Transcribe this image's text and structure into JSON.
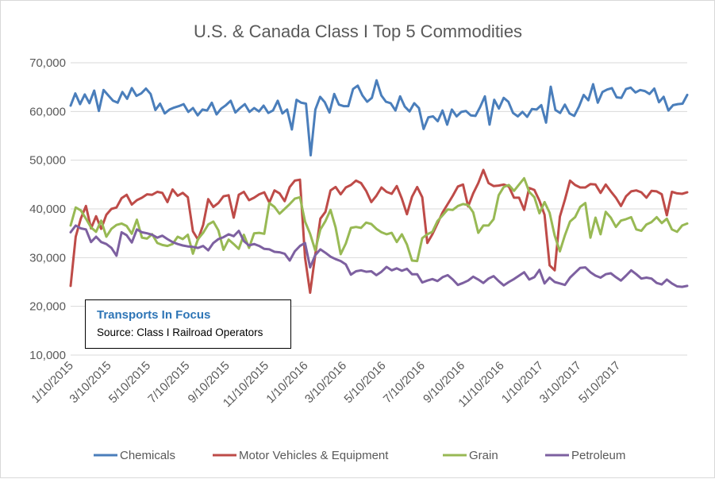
{
  "chart_data": {
    "type": "line",
    "title": "U.S. & Canada Class I Top 5 Commodities",
    "ylim": [
      10000,
      70000
    ],
    "y_ticks": [
      10000,
      20000,
      30000,
      40000,
      50000,
      60000,
      70000
    ],
    "y_tick_labels": [
      "10,000",
      "20,000",
      "30,000",
      "40,000",
      "50,000",
      "60,000",
      "70,000"
    ],
    "x_tick_labels": [
      "1/10/2015",
      "3/10/2015",
      "5/10/2015",
      "7/10/2015",
      "9/10/2015",
      "11/10/2015",
      "1/10/2016",
      "3/10/2016",
      "5/10/2016",
      "7/10/2016",
      "9/10/2016",
      "11/10/2016",
      "1/10/2017",
      "3/10/2017",
      "5/10/2017"
    ],
    "x_start": "1/10/2015",
    "x_end": "8/26/2017",
    "grid": true,
    "legend_position": "bottom",
    "series": [
      {
        "name": "Chemicals",
        "color": "#4A7EBB",
        "values": [
          61200,
          63700,
          61500,
          63500,
          61700,
          64300,
          60100,
          64400,
          63300,
          62200,
          61800,
          64000,
          62600,
          64800,
          63200,
          63700,
          64700,
          63600,
          60300,
          61600,
          59600,
          60400,
          60800,
          61100,
          61500,
          59900,
          60700,
          59200,
          60400,
          60200,
          61800,
          59400,
          60600,
          61300,
          62200,
          59800,
          60700,
          61500,
          59900,
          60700,
          60000,
          61200,
          59700,
          60200,
          62200,
          59600,
          60400,
          56300,
          62400,
          61800,
          61600,
          51000,
          60400,
          63000,
          61900,
          59800,
          63600,
          61400,
          61100,
          61100,
          64600,
          65300,
          63300,
          62000,
          62800,
          66400,
          63300,
          62000,
          61700,
          60200,
          63100,
          61000,
          60000,
          61700,
          60700,
          56400,
          58800,
          59000,
          58000,
          60200,
          57300,
          60400,
          59000,
          59900,
          60100,
          59200,
          59100,
          60900,
          63100,
          57300,
          62400,
          60600,
          62800,
          62000,
          59700,
          59000,
          59900,
          58900,
          60500,
          60400,
          61300,
          57700,
          65100,
          60300,
          59700,
          61400,
          59600,
          59100,
          61000,
          63400,
          62300,
          65600,
          61800,
          64000,
          64500,
          64800,
          62900,
          62800,
          64600,
          64900,
          63900,
          64400,
          64200,
          63600,
          64700,
          61900,
          63000,
          60200,
          61300,
          61500,
          61600,
          63400
        ]
      },
      {
        "name": "Motor Vehicles & Equipment",
        "color": "#BE4B48",
        "values": [
          24200,
          34300,
          38000,
          40600,
          36000,
          38500,
          35900,
          38800,
          40000,
          40300,
          42200,
          42900,
          40900,
          41800,
          42300,
          43000,
          42900,
          43500,
          43300,
          41400,
          44000,
          42700,
          43300,
          42400,
          35400,
          33700,
          36700,
          42000,
          40400,
          41200,
          42600,
          42800,
          38200,
          42900,
          43500,
          41800,
          42300,
          43000,
          43400,
          41300,
          43800,
          43200,
          41600,
          44500,
          45800,
          46000,
          30000,
          22800,
          30500,
          38000,
          39400,
          43800,
          44500,
          43000,
          44400,
          44900,
          45800,
          45300,
          43700,
          41400,
          42700,
          44400,
          43500,
          43100,
          44700,
          42100,
          38900,
          42500,
          44500,
          42400,
          33000,
          34800,
          37000,
          39300,
          41000,
          42700,
          44600,
          45000,
          40500,
          43200,
          45300,
          48000,
          45300,
          44700,
          44800,
          45000,
          44600,
          42300,
          42300,
          39800,
          44300,
          43900,
          41700,
          38800,
          28400,
          27400,
          38400,
          41900,
          45800,
          44900,
          44400,
          44400,
          45100,
          45000,
          43300,
          45000,
          43600,
          42300,
          40600,
          42600,
          43600,
          43800,
          43400,
          42300,
          43700,
          43600,
          43000,
          38700,
          43500,
          43200,
          43100,
          43400
        ]
      },
      {
        "name": "Grain",
        "color": "#98B954",
        "values": [
          36600,
          40300,
          39700,
          38000,
          36200,
          35300,
          37600,
          34300,
          35900,
          36700,
          37000,
          36500,
          34900,
          37800,
          34100,
          33900,
          34800,
          33000,
          32600,
          32400,
          32800,
          34300,
          33800,
          34700,
          30800,
          33800,
          35100,
          36800,
          37400,
          35600,
          31600,
          33700,
          32800,
          31800,
          34700,
          32000,
          35000,
          35100,
          34900,
          41200,
          40400,
          39000,
          40000,
          41000,
          42100,
          42400,
          37400,
          34900,
          31500,
          35800,
          37500,
          39800,
          36200,
          30700,
          32900,
          36100,
          36300,
          36100,
          37200,
          36900,
          35900,
          35200,
          34800,
          35100,
          33200,
          34800,
          32700,
          29400,
          29300,
          34000,
          34800,
          35300,
          37500,
          38700,
          39900,
          39800,
          40600,
          41000,
          40800,
          39300,
          35100,
          36600,
          36600,
          37900,
          42800,
          44500,
          44900,
          43700,
          45000,
          46300,
          43500,
          42400,
          39100,
          41400,
          39200,
          34500,
          31300,
          34600,
          37400,
          38300,
          40400,
          41200,
          34100,
          38200,
          34800,
          39400,
          38200,
          36300,
          37600,
          37900,
          38300,
          35800,
          35500,
          36800,
          37300,
          38300,
          37100,
          38000,
          35800,
          35300,
          36600,
          37000
        ]
      },
      {
        "name": "Petroleum",
        "color": "#7D60A0",
        "values": [
          35200,
          36600,
          36000,
          35800,
          33200,
          34300,
          33200,
          32800,
          32000,
          30400,
          35200,
          34600,
          33100,
          35800,
          35200,
          35000,
          34700,
          34100,
          34500,
          33800,
          33200,
          32800,
          32500,
          32300,
          32200,
          32000,
          32400,
          31500,
          33000,
          33800,
          34200,
          34800,
          34400,
          35500,
          33400,
          32500,
          32800,
          32400,
          31800,
          31700,
          31200,
          31100,
          30800,
          29400,
          31300,
          32400,
          33000,
          28000,
          30500,
          31700,
          31000,
          30200,
          29700,
          29300,
          28600,
          26500,
          27200,
          27400,
          27100,
          27200,
          26400,
          27100,
          28100,
          27400,
          27800,
          27300,
          27700,
          26600,
          26600,
          24900,
          25300,
          25600,
          25200,
          26000,
          26400,
          25500,
          24400,
          24800,
          25300,
          26100,
          25500,
          24800,
          25700,
          26200,
          25200,
          24300,
          25000,
          25600,
          26300,
          27000,
          25500,
          26000,
          27500,
          24700,
          25900,
          25000,
          24700,
          24400,
          25900,
          26900,
          27900,
          28000,
          27000,
          26300,
          25900,
          26600,
          26800,
          26000,
          25300,
          26300,
          27400,
          26600,
          25700,
          25900,
          25700,
          24800,
          24500,
          25500,
          24700,
          24100,
          24000,
          24200
        ]
      }
    ]
  },
  "annotation": {
    "title": "Transports  In Focus",
    "source": "Source: Class I Railroad Operators"
  }
}
